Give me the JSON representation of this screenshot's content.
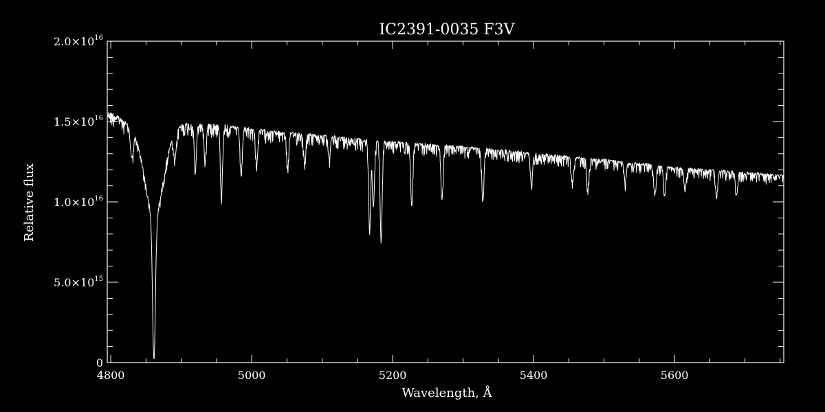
{
  "chart_data": {
    "type": "line",
    "title": "IC2391-0035  F3V",
    "xlabel": "Wavelength, Å",
    "ylabel": "Relative flux",
    "xlim": [
      4795,
      5755
    ],
    "ylim": [
      0,
      2e+16
    ],
    "grid": false,
    "legend": "none",
    "x_ticks": [
      {
        "value": 4800,
        "label": "4800"
      },
      {
        "value": 5000,
        "label": "5000"
      },
      {
        "value": 5200,
        "label": "5200"
      },
      {
        "value": 5400,
        "label": "5400"
      },
      {
        "value": 5600,
        "label": "5600"
      }
    ],
    "x_minor_step": 50,
    "y_ticks": [
      {
        "value": 0,
        "mant": "0",
        "exp": ""
      },
      {
        "value": 5000000000000000.0,
        "mant": "5.0×10",
        "exp": "15"
      },
      {
        "value": 1e+16,
        "mant": "1.0×10",
        "exp": "16"
      },
      {
        "value": 1.5e+16,
        "mant": "1.5×10",
        "exp": "16"
      },
      {
        "value": 2e+16,
        "mant": "2.0×10",
        "exp": "16"
      }
    ],
    "y_minor_step": 1000000000000000.0,
    "series": [
      {
        "unit": 1e+16,
        "continuum": [
          [
            4795,
            1.57
          ],
          [
            4810,
            1.54
          ],
          [
            4825,
            1.49
          ],
          [
            4840,
            1.44
          ],
          [
            4870,
            1.4
          ],
          [
            4900,
            1.49
          ],
          [
            4950,
            1.49
          ],
          [
            5000,
            1.46
          ],
          [
            5100,
            1.42
          ],
          [
            5200,
            1.38
          ],
          [
            5300,
            1.35
          ],
          [
            5400,
            1.31
          ],
          [
            5500,
            1.27
          ],
          [
            5600,
            1.22
          ],
          [
            5700,
            1.19
          ],
          [
            5755,
            1.17
          ]
        ],
        "absorption_lines": [
          [
            4861.3,
            0.98,
            2.0
          ],
          [
            4861.3,
            0.35,
            12.0
          ],
          [
            4830,
            0.12,
            2.0
          ],
          [
            4891,
            0.12,
            2.0
          ],
          [
            4920,
            0.2,
            1.5
          ],
          [
            4934,
            0.15,
            1.5
          ],
          [
            4957,
            0.3,
            1.5
          ],
          [
            4985,
            0.2,
            1.5
          ],
          [
            5007,
            0.15,
            1.5
          ],
          [
            5051,
            0.15,
            1.5
          ],
          [
            5075,
            0.12,
            1.5
          ],
          [
            5110,
            0.1,
            1.5
          ],
          [
            5167.3,
            0.4,
            1.5
          ],
          [
            5172.7,
            0.3,
            1.5
          ],
          [
            5183.6,
            0.45,
            1.5
          ],
          [
            5227,
            0.28,
            1.5
          ],
          [
            5270,
            0.25,
            1.5
          ],
          [
            5328,
            0.25,
            1.5
          ],
          [
            5397,
            0.15,
            1.5
          ],
          [
            5455,
            0.12,
            1.5
          ],
          [
            5477,
            0.15,
            1.5
          ],
          [
            5530,
            0.1,
            1.5
          ],
          [
            5572,
            0.15,
            1.5
          ],
          [
            5586,
            0.15,
            1.5
          ],
          [
            5615,
            0.12,
            1.5
          ],
          [
            5660,
            0.12,
            1.5
          ],
          [
            5688,
            0.12,
            1.5
          ]
        ]
      }
    ]
  }
}
